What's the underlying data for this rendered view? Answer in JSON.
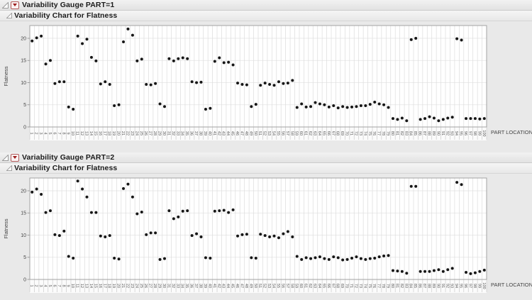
{
  "page_bg": "#e9e9e9",
  "icons": {
    "disclosure": "open-disclosure-triangle",
    "panel_menu": "red-triangle-menu"
  },
  "panels": [
    {
      "title": "Variability Gauge PART=1",
      "subtitle": "Variability Chart for Flatness"
    },
    {
      "title": "Variability Gauge PART=2",
      "subtitle": "Variability Chart for Flatness"
    }
  ],
  "chart_data": [
    {
      "type": "scatter",
      "title": "Variability Gauge PART=1",
      "subtitle": "Variability Chart for Flatness",
      "xlabel": "PART LOCATION",
      "ylabel": "Flatness",
      "x_start": 1,
      "x_end": 100,
      "num_locations": 100,
      "yticks": [
        0,
        5,
        10,
        15,
        20
      ],
      "ylim": [
        0,
        22.9
      ],
      "grid": true,
      "legend": "none",
      "point_color": "#161616",
      "values": [
        19.4,
        20.1,
        20.5,
        14.2,
        15.0,
        9.8,
        10.2,
        10.2,
        4.5,
        4.0,
        20.5,
        18.8,
        19.8,
        15.7,
        14.9,
        9.7,
        10.2,
        9.6,
        4.8,
        5.0,
        19.2,
        22.1,
        20.7,
        14.9,
        15.3,
        9.6,
        9.5,
        9.8,
        5.2,
        4.6,
        15.4,
        14.9,
        15.4,
        15.6,
        15.4,
        10.2,
        10.0,
        10.1,
        4.0,
        4.2,
        14.8,
        15.6,
        14.5,
        14.6,
        14.0,
        9.9,
        9.6,
        9.5,
        4.6,
        5.1,
        9.4,
        9.9,
        9.6,
        9.4,
        10.2,
        9.8,
        9.9,
        10.5,
        4.4,
        5.2,
        4.5,
        4.6,
        5.5,
        5.2,
        5.0,
        4.5,
        4.8,
        4.3,
        4.6,
        4.4,
        4.5,
        4.6,
        4.8,
        4.8,
        5.1,
        5.6,
        5.2,
        5.0,
        4.4,
        1.9,
        1.7,
        2.0,
        1.4,
        19.7,
        20.0,
        1.7,
        1.9,
        2.3,
        2.0,
        1.4,
        1.7,
        2.0,
        2.2,
        19.9,
        19.6,
        1.9,
        1.9,
        1.9,
        1.8,
        1.9
      ]
    },
    {
      "type": "scatter",
      "title": "Variability Gauge PART=2",
      "subtitle": "Variability Chart for Flatness",
      "xlabel": "PART LOCATION",
      "ylabel": "Flatness",
      "x_start": 1,
      "x_end": 100,
      "num_locations": 100,
      "yticks": [
        0,
        5,
        10,
        15,
        20
      ],
      "ylim": [
        0,
        23.1
      ],
      "grid": true,
      "legend": "none",
      "point_color": "#161616",
      "values": [
        19.7,
        20.4,
        19.2,
        15.1,
        15.5,
        10.1,
        9.9,
        10.9,
        5.2,
        4.8,
        22.2,
        20.4,
        18.6,
        15.1,
        15.1,
        9.8,
        9.6,
        9.9,
        4.8,
        4.6,
        20.5,
        21.5,
        18.6,
        14.8,
        15.2,
        10.1,
        10.5,
        10.5,
        4.5,
        4.7,
        15.5,
        13.7,
        14.1,
        15.4,
        15.5,
        9.9,
        10.3,
        9.6,
        4.9,
        4.8,
        15.4,
        15.5,
        15.6,
        15.1,
        15.7,
        9.8,
        10.1,
        10.2,
        4.9,
        4.8,
        10.2,
        9.9,
        9.6,
        9.8,
        9.4,
        10.3,
        10.8,
        9.6,
        5.2,
        4.5,
        4.9,
        4.7,
        4.9,
        5.1,
        4.7,
        4.5,
        5.1,
        4.9,
        4.4,
        4.5,
        4.8,
        5.1,
        4.7,
        4.5,
        4.7,
        4.8,
        5.1,
        5.3,
        5.4,
        2.0,
        1.9,
        1.8,
        1.4,
        21.0,
        21.0,
        1.8,
        1.8,
        1.8,
        2.0,
        2.2,
        1.8,
        2.2,
        2.5,
        21.9,
        21.4,
        1.6,
        1.3,
        1.5,
        1.8,
        2.1
      ]
    }
  ],
  "style": {
    "frame_color": "#a3a3a3",
    "vgrid_color": "#dcdcdc",
    "hgrid_color": "#e3e3e3",
    "tick_label_color": "#555555",
    "axis_label_color": "#444444"
  }
}
